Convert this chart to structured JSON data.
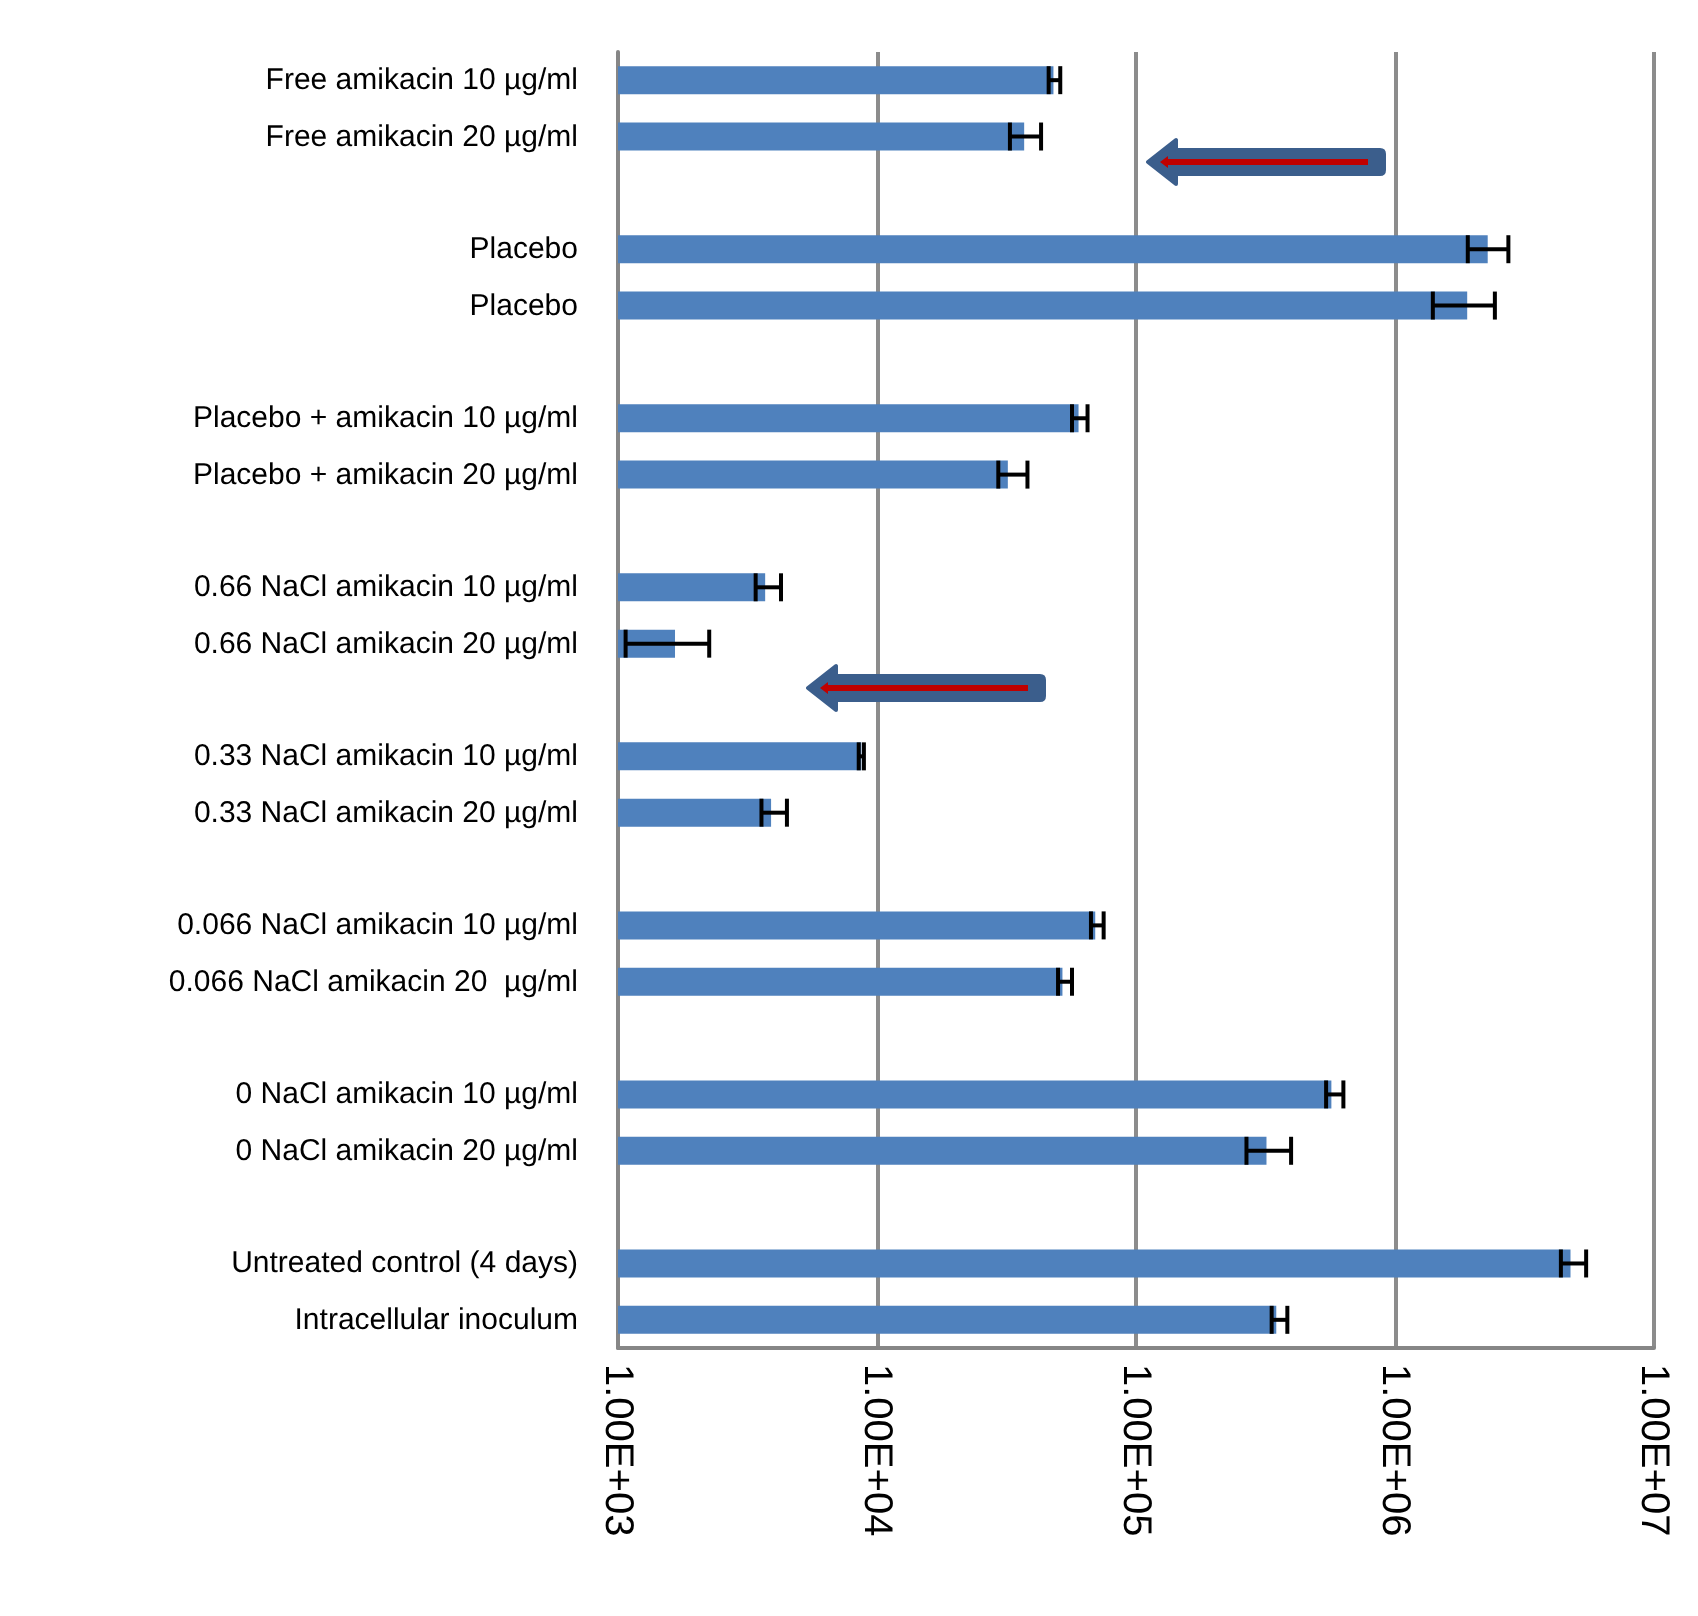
{
  "chart_data": {
    "type": "bar",
    "orientation": "horizontal",
    "categories": [
      "Free amikacin 10 µg/ml",
      "Free amikacin 20 µg/ml",
      null,
      "Placebo",
      "Placebo",
      null,
      "Placebo + amikacin 10 µg/ml",
      "Placebo + amikacin 20 µg/ml",
      null,
      "0.66 NaCl amikacin 10 µg/ml",
      "0.66 NaCl amikacin 20 µg/ml",
      null,
      "0.33 NaCl amikacin 10 µg/ml",
      "0.33 NaCl amikacin 20 µg/ml",
      null,
      "0.066 NaCl amikacin 10 µg/ml",
      "0.066 NaCl amikacin 20  µg/ml",
      null,
      "0 NaCl amikacin 10 µg/ml",
      "0 NaCl amikacin 20 µg/ml",
      null,
      "Untreated control (4 days)",
      "Intracellular inoculum"
    ],
    "values": [
      48000,
      37000,
      null,
      2280000,
      1900000,
      null,
      60000,
      32000,
      null,
      3700,
      1660,
      null,
      8700,
      3900,
      null,
      69600,
      52000,
      null,
      568000,
      319000,
      null,
      4760000,
      348000
    ],
    "errors": [
      [
        46000,
        51000
      ],
      [
        32600,
        43000
      ],
      null,
      [
        1910000,
        2740000
      ],
      [
        1400000,
        2430000
      ],
      null,
      [
        56600,
        65000
      ],
      [
        29400,
        38100
      ],
      null,
      [
        3400,
        4260
      ],
      [
        1070,
        2250
      ],
      null,
      [
        8500,
        8900
      ],
      [
        3580,
        4490
      ],
      null,
      [
        67000,
        75000
      ],
      [
        50000,
        56600
      ],
      null,
      [
        542000,
        632000
      ],
      [
        267000,
        397000
      ],
      null,
      [
        4370000,
        5470000
      ],
      [
        334000,
        384000
      ]
    ],
    "color": "#4f81bd",
    "log": "x",
    "xlim": [
      1000,
      10000000
    ],
    "xticks": [
      {
        "value": 1000,
        "label": "1.00E+03"
      },
      {
        "value": 10000,
        "label": "1.00E+04"
      },
      {
        "value": 100000,
        "label": "1.00E+05"
      },
      {
        "value": 1000000,
        "label": "1.00E+06"
      },
      {
        "value": 10000000,
        "label": "1.00E+07"
      }
    ],
    "grid": "x"
  }
}
